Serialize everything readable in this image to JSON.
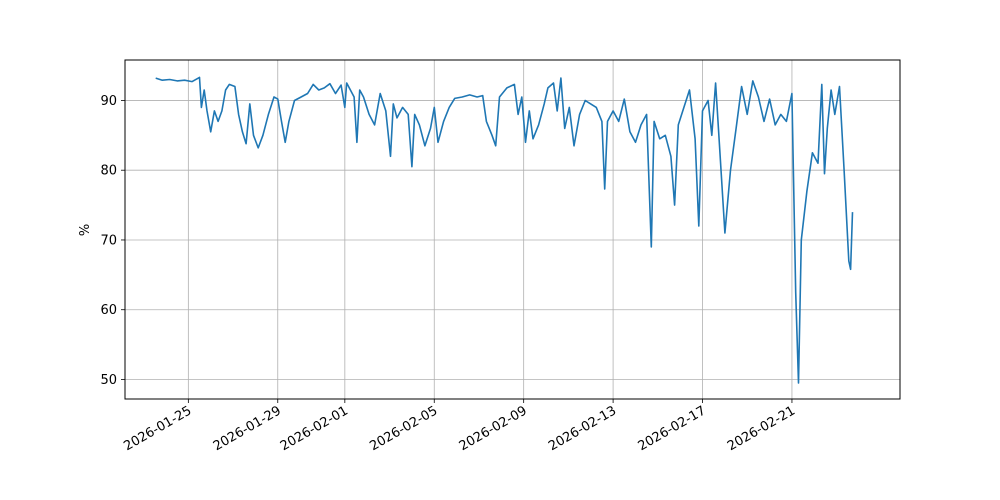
{
  "chart_data": {
    "type": "line",
    "title": "",
    "xlabel": "",
    "ylabel": "%",
    "grid": true,
    "xlim": [
      "2026-01-22T04:00",
      "2026-02-25T20:00"
    ],
    "ylim": [
      47.2,
      95.8
    ],
    "x_ticks": [
      "2026-01-25",
      "2026-01-29",
      "2026-02-01",
      "2026-02-05",
      "2026-02-09",
      "2026-02-13",
      "2026-02-17",
      "2026-02-21"
    ],
    "y_ticks": [
      50,
      60,
      70,
      80,
      90
    ],
    "y_tick_labels": [
      "50",
      "60",
      "70",
      "80",
      "90"
    ],
    "series": [
      {
        "color": "#1f77b4",
        "points": [
          [
            "2026-01-23T13:00",
            93.2
          ],
          [
            "2026-01-23T20:00",
            92.9
          ],
          [
            "2026-01-24T04:00",
            93.0
          ],
          [
            "2026-01-24T12:00",
            92.8
          ],
          [
            "2026-01-24T20:00",
            92.9
          ],
          [
            "2026-01-25T04:00",
            92.7
          ],
          [
            "2026-01-25T12:00",
            93.3
          ],
          [
            "2026-01-25T14:00",
            89.0
          ],
          [
            "2026-01-25T17:00",
            91.5
          ],
          [
            "2026-01-25T20:00",
            88.5
          ],
          [
            "2026-01-26T00:00",
            85.5
          ],
          [
            "2026-01-26T04:00",
            88.5
          ],
          [
            "2026-01-26T08:00",
            87.0
          ],
          [
            "2026-01-26T12:00",
            88.5
          ],
          [
            "2026-01-26T16:00",
            91.5
          ],
          [
            "2026-01-26T20:00",
            92.3
          ],
          [
            "2026-01-27T02:00",
            92.0
          ],
          [
            "2026-01-27T06:00",
            88.0
          ],
          [
            "2026-01-27T10:00",
            85.5
          ],
          [
            "2026-01-27T14:00",
            83.8
          ],
          [
            "2026-01-27T18:00",
            89.5
          ],
          [
            "2026-01-27T22:00",
            85.0
          ],
          [
            "2026-01-28T03:00",
            83.2
          ],
          [
            "2026-01-28T08:00",
            85.0
          ],
          [
            "2026-01-28T14:00",
            88.0
          ],
          [
            "2026-01-28T20:00",
            90.5
          ],
          [
            "2026-01-29T00:00",
            90.2
          ],
          [
            "2026-01-29T04:00",
            87.0
          ],
          [
            "2026-01-29T08:00",
            84.0
          ],
          [
            "2026-01-29T12:00",
            87.0
          ],
          [
            "2026-01-29T18:00",
            90.0
          ],
          [
            "2026-01-30T01:00",
            90.5
          ],
          [
            "2026-01-30T08:00",
            91.0
          ],
          [
            "2026-01-30T14:00",
            92.3
          ],
          [
            "2026-01-30T20:00",
            91.5
          ],
          [
            "2026-01-31T02:00",
            91.8
          ],
          [
            "2026-01-31T08:00",
            92.4
          ],
          [
            "2026-01-31T14:00",
            91.0
          ],
          [
            "2026-01-31T20:00",
            92.2
          ],
          [
            "2026-02-01T00:00",
            89.0
          ],
          [
            "2026-02-01T02:00",
            92.5
          ],
          [
            "2026-02-01T06:00",
            91.5
          ],
          [
            "2026-02-01T10:00",
            90.5
          ],
          [
            "2026-02-01T13:00",
            84.0
          ],
          [
            "2026-02-01T16:00",
            91.5
          ],
          [
            "2026-02-01T20:00",
            90.5
          ],
          [
            "2026-02-02T02:00",
            88.0
          ],
          [
            "2026-02-02T08:00",
            86.5
          ],
          [
            "2026-02-02T14:00",
            91.0
          ],
          [
            "2026-02-02T20:00",
            88.5
          ],
          [
            "2026-02-03T01:00",
            82.0
          ],
          [
            "2026-02-03T04:00",
            89.5
          ],
          [
            "2026-02-03T08:00",
            87.5
          ],
          [
            "2026-02-03T14:00",
            89.0
          ],
          [
            "2026-02-03T20:00",
            88.0
          ],
          [
            "2026-02-04T00:00",
            80.5
          ],
          [
            "2026-02-04T03:00",
            88.0
          ],
          [
            "2026-02-04T08:00",
            86.5
          ],
          [
            "2026-02-04T14:00",
            83.5
          ],
          [
            "2026-02-04T20:00",
            86.0
          ],
          [
            "2026-02-05T00:00",
            89.0
          ],
          [
            "2026-02-05T04:00",
            84.0
          ],
          [
            "2026-02-05T10:00",
            87.0
          ],
          [
            "2026-02-05T16:00",
            89.0
          ],
          [
            "2026-02-05T22:00",
            90.3
          ],
          [
            "2026-02-06T06:00",
            90.5
          ],
          [
            "2026-02-06T14:00",
            90.8
          ],
          [
            "2026-02-06T22:00",
            90.5
          ],
          [
            "2026-02-07T04:00",
            90.7
          ],
          [
            "2026-02-07T08:00",
            87.0
          ],
          [
            "2026-02-07T14:00",
            85.0
          ],
          [
            "2026-02-07T18:00",
            83.5
          ],
          [
            "2026-02-07T22:00",
            90.5
          ],
          [
            "2026-02-08T06:00",
            91.8
          ],
          [
            "2026-02-08T14:00",
            92.3
          ],
          [
            "2026-02-08T18:00",
            88.0
          ],
          [
            "2026-02-08T22:00",
            90.5
          ],
          [
            "2026-02-09T02:00",
            84.0
          ],
          [
            "2026-02-09T06:00",
            88.5
          ],
          [
            "2026-02-09T10:00",
            84.5
          ],
          [
            "2026-02-09T16:00",
            86.5
          ],
          [
            "2026-02-09T22:00",
            89.5
          ],
          [
            "2026-02-10T02:00",
            91.8
          ],
          [
            "2026-02-10T08:00",
            92.5
          ],
          [
            "2026-02-10T12:00",
            88.5
          ],
          [
            "2026-02-10T16:00",
            93.2
          ],
          [
            "2026-02-10T20:00",
            86.0
          ],
          [
            "2026-02-11T01:00",
            89.0
          ],
          [
            "2026-02-11T06:00",
            83.5
          ],
          [
            "2026-02-11T12:00",
            88.0
          ],
          [
            "2026-02-11T18:00",
            90.0
          ],
          [
            "2026-02-12T00:00",
            89.5
          ],
          [
            "2026-02-12T06:00",
            89.0
          ],
          [
            "2026-02-12T12:00",
            87.0
          ],
          [
            "2026-02-12T15:00",
            77.3
          ],
          [
            "2026-02-12T18:00",
            87.0
          ],
          [
            "2026-02-13T00:00",
            88.5
          ],
          [
            "2026-02-13T06:00",
            87.0
          ],
          [
            "2026-02-13T12:00",
            90.2
          ],
          [
            "2026-02-13T18:00",
            85.5
          ],
          [
            "2026-02-14T00:00",
            84.0
          ],
          [
            "2026-02-14T06:00",
            86.5
          ],
          [
            "2026-02-14T12:00",
            88.0
          ],
          [
            "2026-02-14T17:00",
            69.0
          ],
          [
            "2026-02-14T20:00",
            87.0
          ],
          [
            "2026-02-15T02:00",
            84.5
          ],
          [
            "2026-02-15T08:00",
            85.0
          ],
          [
            "2026-02-15T14:00",
            82.0
          ],
          [
            "2026-02-15T18:00",
            75.0
          ],
          [
            "2026-02-15T22:00",
            86.5
          ],
          [
            "2026-02-16T04:00",
            89.0
          ],
          [
            "2026-02-16T10:00",
            91.5
          ],
          [
            "2026-02-16T16:00",
            84.5
          ],
          [
            "2026-02-16T20:00",
            72.0
          ],
          [
            "2026-02-17T00:00",
            88.5
          ],
          [
            "2026-02-17T06:00",
            90.0
          ],
          [
            "2026-02-17T10:00",
            85.0
          ],
          [
            "2026-02-17T14:00",
            92.5
          ],
          [
            "2026-02-17T18:00",
            84.0
          ],
          [
            "2026-02-18T00:00",
            71.0
          ],
          [
            "2026-02-18T06:00",
            80.0
          ],
          [
            "2026-02-18T12:00",
            86.0
          ],
          [
            "2026-02-18T18:00",
            92.0
          ],
          [
            "2026-02-19T00:00",
            88.0
          ],
          [
            "2026-02-19T06:00",
            92.8
          ],
          [
            "2026-02-19T12:00",
            90.5
          ],
          [
            "2026-02-19T18:00",
            87.0
          ],
          [
            "2026-02-20T00:00",
            90.2
          ],
          [
            "2026-02-20T06:00",
            86.5
          ],
          [
            "2026-02-20T12:00",
            88.0
          ],
          [
            "2026-02-20T18:00",
            87.0
          ],
          [
            "2026-02-21T00:00",
            91.0
          ],
          [
            "2026-02-21T04:00",
            62.5
          ],
          [
            "2026-02-21T07:00",
            49.5
          ],
          [
            "2026-02-21T10:00",
            70.0
          ],
          [
            "2026-02-21T16:00",
            77.0
          ],
          [
            "2026-02-21T22:00",
            82.5
          ],
          [
            "2026-02-22T04:00",
            81.0
          ],
          [
            "2026-02-22T08:00",
            92.3
          ],
          [
            "2026-02-22T11:00",
            79.5
          ],
          [
            "2026-02-22T14:00",
            86.0
          ],
          [
            "2026-02-22T18:00",
            91.5
          ],
          [
            "2026-02-22T22:00",
            88.0
          ],
          [
            "2026-02-23T03:00",
            92.0
          ],
          [
            "2026-02-23T08:00",
            80.0
          ],
          [
            "2026-02-23T13:00",
            67.0
          ],
          [
            "2026-02-23T15:00",
            65.8
          ],
          [
            "2026-02-23T17:00",
            74.0
          ]
        ]
      }
    ]
  }
}
